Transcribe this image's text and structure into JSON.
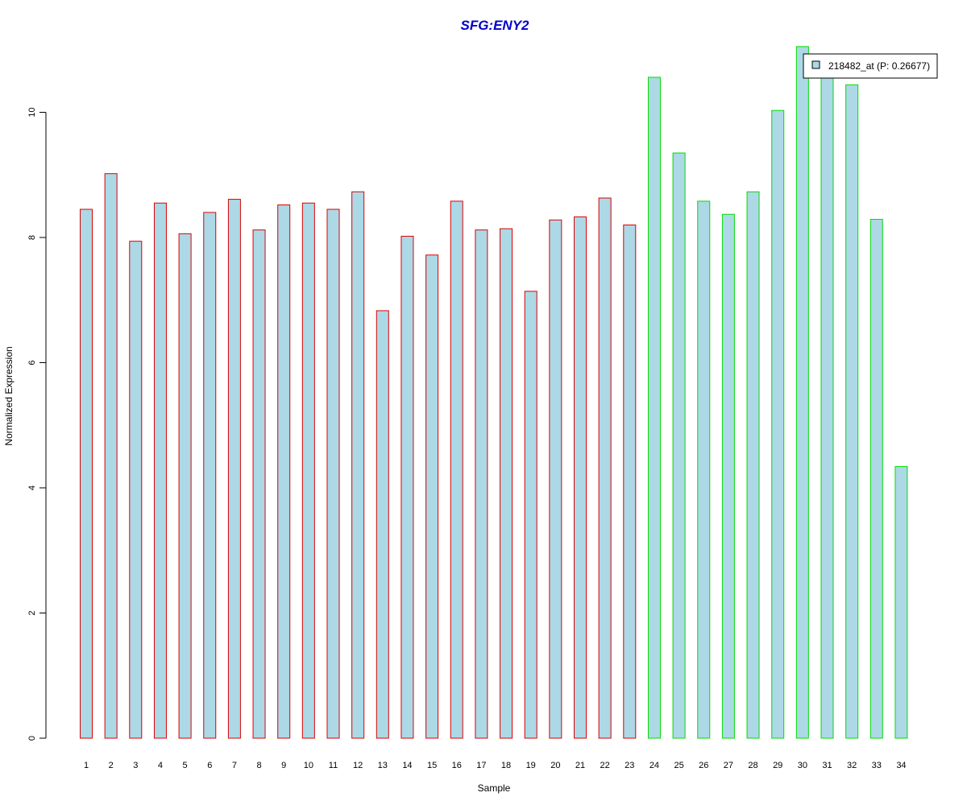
{
  "chart_data": {
    "type": "bar",
    "title": "SFG:ENY2",
    "xlabel": "Sample",
    "ylabel": "Normalized Expression",
    "ylim": [
      0,
      11
    ],
    "yticks": [
      "0",
      "2",
      "4",
      "6",
      "8",
      "10"
    ],
    "categories": [
      "1",
      "2",
      "3",
      "4",
      "5",
      "6",
      "7",
      "8",
      "9",
      "10",
      "11",
      "12",
      "13",
      "14",
      "15",
      "16",
      "17",
      "18",
      "19",
      "20",
      "21",
      "22",
      "23",
      "24",
      "25",
      "26",
      "27",
      "28",
      "29",
      "30",
      "31",
      "32",
      "33",
      "34"
    ],
    "series": [
      {
        "name": "218482_at (P: 0.26677)",
        "fill_color": "#add8e6",
        "values": [
          8.45,
          9.02,
          7.94,
          8.55,
          8.06,
          8.4,
          8.61,
          8.12,
          8.52,
          8.55,
          8.45,
          8.73,
          6.83,
          8.02,
          7.72,
          8.58,
          8.12,
          8.14,
          7.14,
          8.28,
          8.33,
          8.63,
          8.2,
          10.56,
          9.35,
          8.58,
          8.37,
          8.73,
          10.03,
          11.05,
          10.62,
          10.44,
          8.29,
          4.34
        ]
      }
    ],
    "groups": [
      {
        "samples_from": 1,
        "samples_to": 23,
        "border_color": "#dd0000"
      },
      {
        "samples_from": 24,
        "samples_to": 34,
        "border_color": "#00dd00"
      }
    ],
    "grid": false,
    "legend": {
      "position": "top-right",
      "label": "218482_at (P: 0.26677)"
    }
  }
}
